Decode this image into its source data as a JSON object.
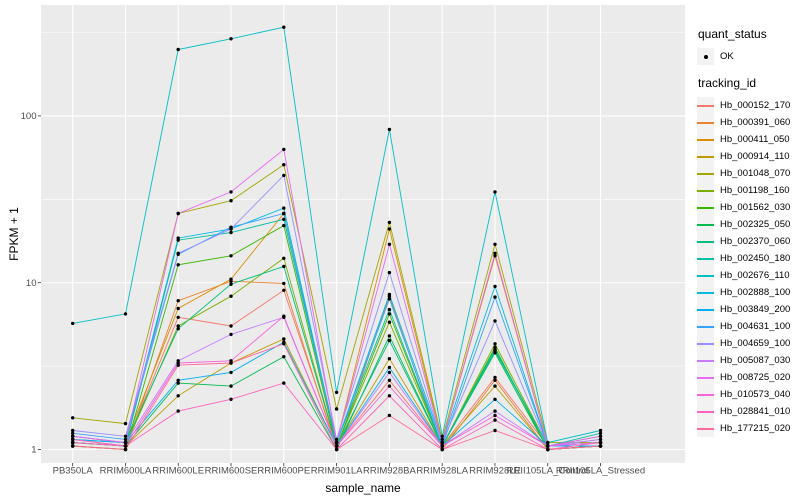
{
  "style": {
    "figure_bg": "#FFFFFF",
    "panel_bg": "#EBEBEB",
    "grid_color": "#FFFFFF",
    "tick_color": "#333333",
    "axis_label_color": "#4D4D4D",
    "point_color": "#000000",
    "legend_key_bg": "#F2F2F2"
  },
  "chart_data": {
    "type": "line",
    "title": "",
    "xlabel": "sample_name",
    "ylabel": "FPKM + 1",
    "y_scale": "log10",
    "y_ticks": [
      1,
      10,
      100
    ],
    "y_minor_gridlines": [
      3.162,
      31.62,
      316.2
    ],
    "ylim": [
      0.83,
      470
    ],
    "grid": true,
    "legend_position": "right",
    "point_shape": "filled-circle",
    "legend": {
      "quant_status_title": "quant_status",
      "quant_status_items": [
        "OK"
      ],
      "tracking_id_title": "tracking_id"
    },
    "categories": [
      "PB350LA",
      "RRIM600LA",
      "RRIM600LE",
      "RRIM600SE",
      "RRIM600PE",
      "RRIM901LA",
      "RRIM928BA",
      "RRIM928LA",
      "RRIM928LE",
      "RRII105LA_Control",
      "RRII105LA_Stressed"
    ],
    "series": [
      {
        "name": "Hb_000152_170",
        "color": "#F8766D",
        "values": [
          1.1,
          1.05,
          6.2,
          5.5,
          9.0,
          1.05,
          2.6,
          1.05,
          2.7,
          1.05,
          1.1
        ]
      },
      {
        "name": "Hb_000391_060",
        "color": "#EA8331",
        "values": [
          1.05,
          1.0,
          7.8,
          10.2,
          9.9,
          1.0,
          8.3,
          1.0,
          2.6,
          1.0,
          1.05
        ]
      },
      {
        "name": "Hb_000411_050",
        "color": "#D89000",
        "values": [
          1.2,
          1.1,
          7.0,
          10.5,
          26,
          1.1,
          21,
          1.1,
          14.5,
          1.05,
          1.1
        ]
      },
      {
        "name": "Hb_000914_110",
        "color": "#C09B00",
        "values": [
          1.15,
          1.05,
          2.1,
          3.3,
          4.6,
          1.05,
          3.5,
          1.05,
          2.4,
          1.0,
          1.05
        ]
      },
      {
        "name": "Hb_001048_070",
        "color": "#A3A500",
        "values": [
          1.55,
          1.43,
          26,
          31,
          51,
          1.75,
          23,
          1.15,
          17,
          1.1,
          1.1
        ]
      },
      {
        "name": "Hb_001198_160",
        "color": "#7CAE00",
        "values": [
          1.1,
          1.05,
          5.5,
          8.3,
          14,
          1.05,
          5.8,
          1.05,
          4.3,
          1.05,
          1.1
        ]
      },
      {
        "name": "Hb_001562_030",
        "color": "#39B600",
        "values": [
          1.05,
          1.0,
          12.8,
          14.5,
          22,
          1.05,
          6.5,
          1.05,
          4.1,
          1.0,
          1.05
        ]
      },
      {
        "name": "Hb_002325_050",
        "color": "#00BB4E",
        "values": [
          1.1,
          1.05,
          2.5,
          2.4,
          3.6,
          1.0,
          4.8,
          1.05,
          3.8,
          1.0,
          1.05
        ]
      },
      {
        "name": "Hb_002370_060",
        "color": "#00BF7D",
        "values": [
          1.15,
          1.1,
          5.3,
          9.8,
          12.5,
          1.05,
          4.5,
          1.05,
          3.9,
          1.05,
          1.15
        ]
      },
      {
        "name": "Hb_002450_180",
        "color": "#00C1A3",
        "values": [
          1.1,
          1.05,
          18,
          20,
          24,
          1.1,
          6.9,
          1.05,
          4.0,
          1.05,
          1.25
        ]
      },
      {
        "name": "Hb_002676_110",
        "color": "#00BFC4",
        "values": [
          5.7,
          6.5,
          250,
          290,
          340,
          2.2,
          83,
          1.2,
          35,
          1.1,
          1.3
        ]
      },
      {
        "name": "Hb_002888_100",
        "color": "#00BAE0",
        "values": [
          1.2,
          1.1,
          18.5,
          21,
          28,
          1.1,
          8.5,
          1.1,
          9.5,
          1.05,
          1.2
        ]
      },
      {
        "name": "Hb_003849_200",
        "color": "#00B0F6",
        "values": [
          1.15,
          1.1,
          2.6,
          2.9,
          4.4,
          1.05,
          3.1,
          1.05,
          2.0,
          1.05,
          1.05
        ]
      },
      {
        "name": "Hb_004631_100",
        "color": "#35A2FF",
        "values": [
          1.25,
          1.15,
          14.8,
          21.5,
          26,
          1.1,
          8.0,
          1.05,
          8.2,
          1.05,
          1.1
        ]
      },
      {
        "name": "Hb_004659_100",
        "color": "#9590FF",
        "values": [
          1.3,
          1.2,
          15,
          21,
          44,
          1.15,
          11.5,
          1.1,
          5.9,
          1.05,
          1.1
        ]
      },
      {
        "name": "Hb_005087_030",
        "color": "#C77CFF",
        "values": [
          1.2,
          1.1,
          3.4,
          4.9,
          6.2,
          1.05,
          2.9,
          1.05,
          1.7,
          1.05,
          1.15
        ]
      },
      {
        "name": "Hb_008725_020",
        "color": "#E76BF3",
        "values": [
          1.2,
          1.1,
          26,
          35,
          63,
          1.1,
          17,
          1.1,
          15,
          1.05,
          1.1
        ]
      },
      {
        "name": "Hb_010573_040",
        "color": "#FA62DB",
        "values": [
          1.15,
          1.05,
          3.3,
          3.4,
          6.3,
          1.05,
          2.4,
          1.05,
          1.6,
          1.05,
          1.2
        ]
      },
      {
        "name": "Hb_028841_010",
        "color": "#FF62BC",
        "values": [
          1.1,
          1.05,
          1.7,
          2.0,
          2.5,
          1.0,
          2.1,
          1.0,
          1.5,
          1.0,
          1.1
        ]
      },
      {
        "name": "Hb_177215_020",
        "color": "#FF6A98",
        "values": [
          1.05,
          1.0,
          3.2,
          3.3,
          4.3,
          1.0,
          1.6,
          1.0,
          1.3,
          1.0,
          1.05
        ]
      }
    ]
  }
}
